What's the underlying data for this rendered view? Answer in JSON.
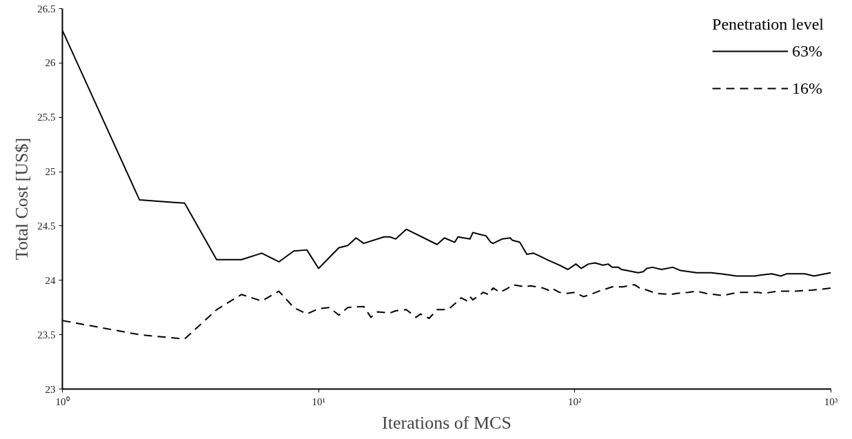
{
  "chart_data": {
    "type": "line",
    "xlabel": "Iterations of MCS",
    "ylabel": "Total Cost [US$]",
    "legend_title": "Penetration level",
    "legend": "top right",
    "log": "x",
    "grid": false,
    "xlim": [
      1,
      1000
    ],
    "xticks": [
      {
        "value": 1,
        "label": "10⁰"
      },
      {
        "value": 10,
        "label": "10¹"
      },
      {
        "value": 100,
        "label": "10²"
      },
      {
        "value": 1000,
        "label": "10³"
      }
    ],
    "ylim": [
      23,
      26.5
    ],
    "yticks": [
      23,
      23.5,
      24,
      24.5,
      25,
      25.5,
      26,
      26.5
    ],
    "series": [
      {
        "name": "63%",
        "color": "#000000",
        "line_style": "solid",
        "x": [
          1,
          2,
          3,
          4,
          5,
          6,
          7,
          8,
          9,
          10,
          12,
          13,
          14,
          15,
          18,
          19,
          20,
          22,
          29,
          31,
          34,
          35,
          39,
          40,
          43,
          45,
          47,
          48,
          52,
          56,
          57,
          61,
          65,
          69,
          75,
          78,
          87,
          94,
          101,
          106,
          113,
          120,
          129,
          135,
          140,
          148,
          152,
          160,
          177,
          185,
          191,
          201,
          218,
          241,
          259,
          299,
          341,
          370,
          402,
          427,
          504,
          535,
          587,
          637,
          671,
          750,
          790,
          858,
          950,
          1000
        ],
        "values": [
          26.3,
          24.74,
          24.71,
          24.19,
          24.19,
          24.25,
          24.17,
          24.27,
          24.28,
          24.11,
          24.3,
          24.32,
          24.39,
          24.34,
          24.4,
          24.4,
          24.38,
          24.47,
          24.33,
          24.39,
          24.35,
          24.4,
          24.38,
          24.44,
          24.42,
          24.41,
          24.35,
          24.34,
          24.38,
          24.39,
          24.37,
          24.35,
          24.24,
          24.25,
          24.21,
          24.19,
          24.14,
          24.1,
          24.15,
          24.11,
          24.15,
          24.16,
          24.14,
          24.15,
          24.12,
          24.12,
          24.1,
          24.09,
          24.07,
          24.08,
          24.11,
          24.12,
          24.1,
          24.12,
          24.09,
          24.07,
          24.07,
          24.06,
          24.05,
          24.04,
          24.04,
          24.05,
          24.06,
          24.04,
          24.06,
          24.06,
          24.06,
          24.04,
          24.06,
          24.07
        ]
      },
      {
        "name": "16%",
        "color": "#000000",
        "line_style": "dashed",
        "x": [
          1,
          2,
          3,
          4,
          5,
          6,
          7,
          8,
          9,
          10,
          11,
          12,
          13,
          15,
          16,
          17,
          19,
          20,
          22,
          24,
          25,
          27,
          29,
          32,
          35,
          36,
          38,
          39,
          40,
          44,
          46,
          48,
          51,
          55,
          57,
          64,
          67,
          75,
          79,
          81,
          87,
          93,
          100,
          108,
          115,
          124,
          128,
          140,
          154,
          171,
          179,
          186,
          208,
          236,
          250,
          278,
          299,
          326,
          377,
          434,
          517,
          547,
          616,
          711,
          842,
          927,
          1000
        ],
        "values": [
          23.63,
          23.5,
          23.46,
          23.73,
          23.87,
          23.81,
          23.9,
          23.75,
          23.69,
          23.74,
          23.75,
          23.68,
          23.75,
          23.76,
          23.66,
          23.71,
          23.7,
          23.72,
          23.73,
          23.66,
          23.69,
          23.65,
          23.73,
          23.73,
          23.81,
          23.84,
          23.81,
          23.85,
          23.82,
          23.89,
          23.87,
          23.93,
          23.89,
          23.93,
          23.96,
          23.94,
          23.95,
          23.93,
          23.91,
          23.93,
          23.89,
          23.88,
          23.89,
          23.85,
          23.87,
          23.9,
          23.91,
          23.94,
          23.94,
          23.96,
          23.93,
          23.92,
          23.88,
          23.87,
          23.88,
          23.89,
          23.9,
          23.88,
          23.86,
          23.89,
          23.89,
          23.88,
          23.9,
          23.9,
          23.91,
          23.92,
          23.93
        ]
      }
    ]
  }
}
